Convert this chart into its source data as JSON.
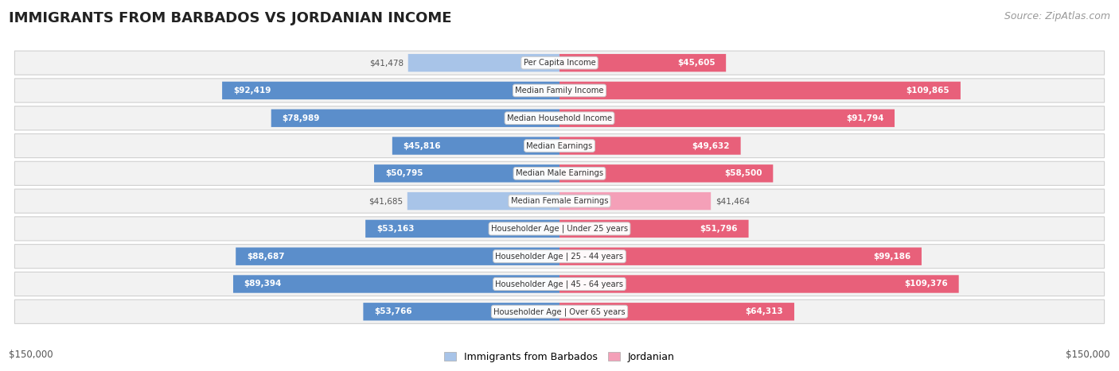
{
  "title": "IMMIGRANTS FROM BARBADOS VS JORDANIAN INCOME",
  "source": "Source: ZipAtlas.com",
  "categories": [
    "Per Capita Income",
    "Median Family Income",
    "Median Household Income",
    "Median Earnings",
    "Median Male Earnings",
    "Median Female Earnings",
    "Householder Age | Under 25 years",
    "Householder Age | 25 - 44 years",
    "Householder Age | 45 - 64 years",
    "Householder Age | Over 65 years"
  ],
  "barbados_values": [
    41478,
    92419,
    78989,
    45816,
    50795,
    41685,
    53163,
    88687,
    89394,
    53766
  ],
  "jordanian_values": [
    45605,
    109865,
    91794,
    49632,
    58500,
    41464,
    51796,
    99186,
    109376,
    64313
  ],
  "barbados_color_light": "#a8c4e8",
  "barbados_color_dark": "#5b8ecb",
  "jordanian_color_light": "#f4a0b8",
  "jordanian_color_dark": "#e8607a",
  "max_val": 150000,
  "bg_color": "#ffffff",
  "row_bg_color": "#f2f2f2",
  "barbados_label": "Immigrants from Barbados",
  "jordanian_label": "Jordanian",
  "xlabel_left": "$150,000",
  "xlabel_right": "$150,000",
  "title_fontsize": 13,
  "source_fontsize": 9,
  "inside_label_threshold": 0.28
}
